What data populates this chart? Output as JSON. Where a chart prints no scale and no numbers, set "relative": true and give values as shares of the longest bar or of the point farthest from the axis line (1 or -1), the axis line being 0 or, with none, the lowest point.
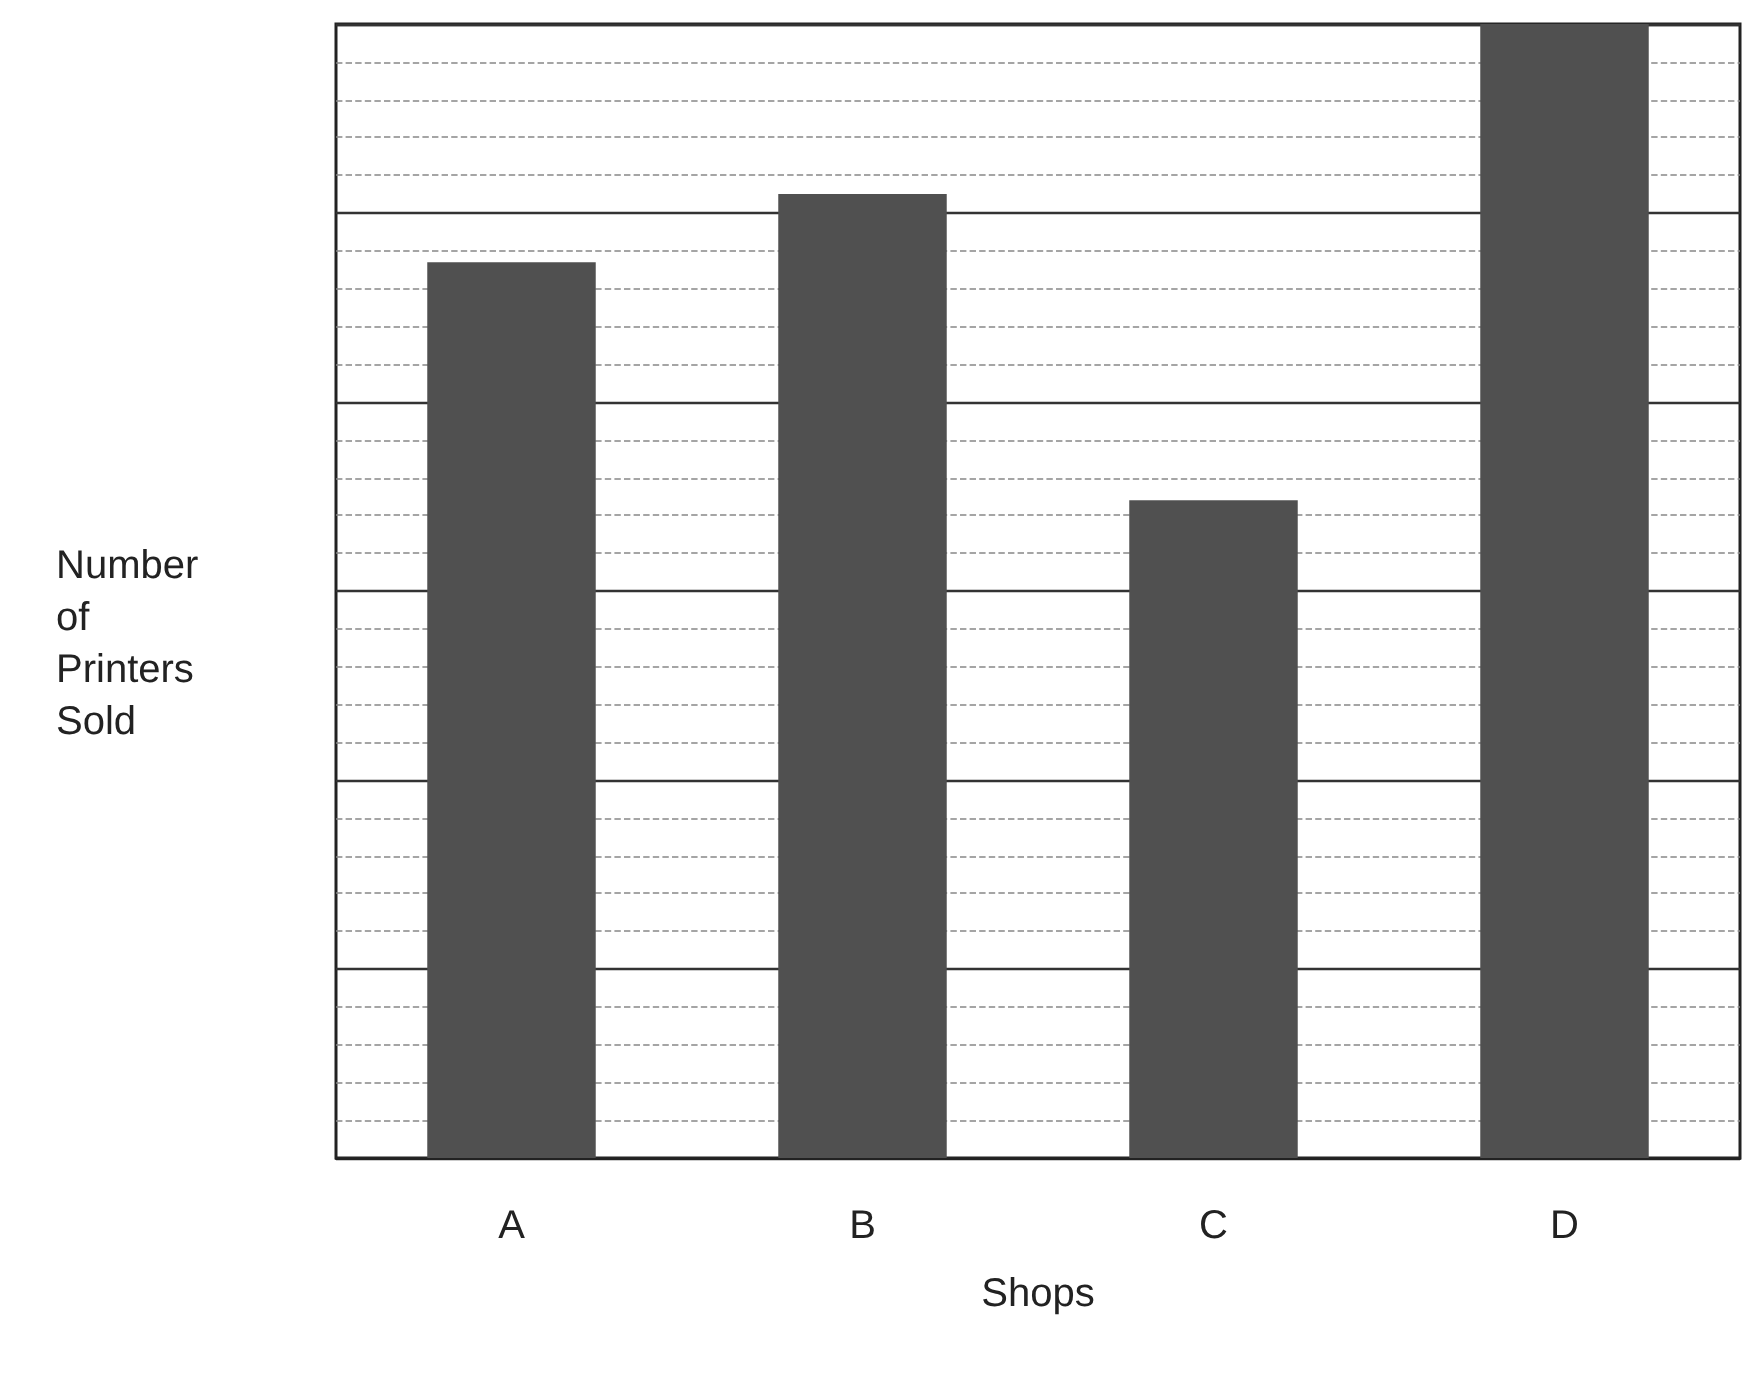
{
  "chart_data": {
    "type": "bar",
    "xlabel": "Shops",
    "ylabel": "Number of Printers Sold",
    "categories": [
      "A",
      "B",
      "C",
      "D"
    ],
    "values": [
      0.79,
      0.85,
      0.58,
      1
    ],
    "color": "#505050",
    "relative": true,
    "grid": true
  }
}
